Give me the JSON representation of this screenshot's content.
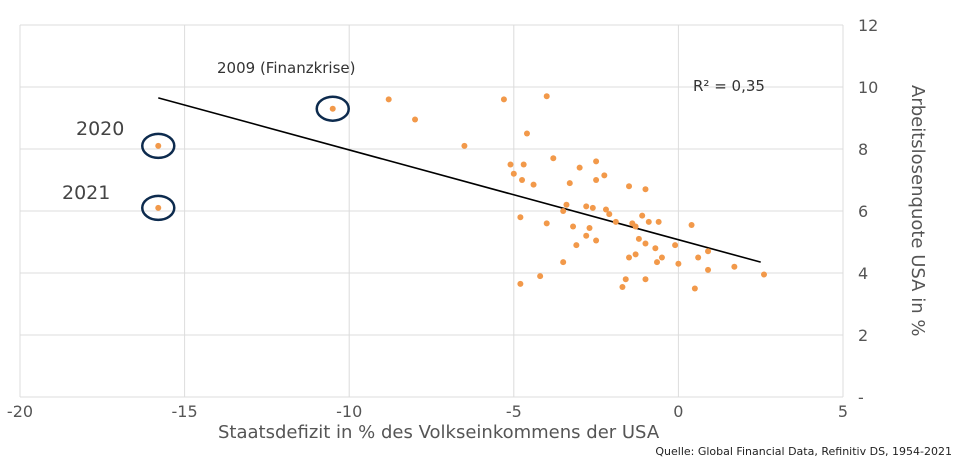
{
  "chart_data": {
    "type": "scatter",
    "title": "",
    "xlabel": "Staatsdefizit in % des Volkseinkommens der USA",
    "ylabel": "Arbeitslosenquote USA in %",
    "xlim": [
      -20,
      5
    ],
    "ylim": [
      0,
      12
    ],
    "x_ticks": [
      "-20",
      "-15",
      "-10",
      "-5",
      "0",
      "5"
    ],
    "y_ticks": [
      "-",
      "2",
      "4",
      "6",
      "8",
      "10",
      "12"
    ],
    "grid": true,
    "point_color": "#f2994a",
    "trendline_color": "#000000",
    "highlight_color": "#0d2b4e",
    "trendline": {
      "x": [
        -15.8,
        2.5
      ],
      "y": [
        9.65,
        4.35
      ]
    },
    "r_squared_label": "R² = 0,35",
    "annotations": [
      {
        "text": "2009 (Finanzkrise)",
        "x": -10.5,
        "y": 9.3
      },
      {
        "text": "2020",
        "x": -15.8,
        "y": 8.1
      },
      {
        "text": "2021",
        "x": -15.8,
        "y": 6.1
      }
    ],
    "highlighted_points": [
      {
        "x": -15.8,
        "y": 8.1
      },
      {
        "x": -15.8,
        "y": 6.1
      },
      {
        "x": -10.5,
        "y": 9.3
      }
    ],
    "points": [
      {
        "x": -15.8,
        "y": 8.1
      },
      {
        "x": -15.8,
        "y": 6.1
      },
      {
        "x": -10.5,
        "y": 9.3
      },
      {
        "x": -8.8,
        "y": 9.6
      },
      {
        "x": -8.0,
        "y": 8.95
      },
      {
        "x": -6.5,
        "y": 8.1
      },
      {
        "x": -5.3,
        "y": 9.6
      },
      {
        "x": -4.0,
        "y": 9.7
      },
      {
        "x": -4.6,
        "y": 8.5
      },
      {
        "x": -5.1,
        "y": 7.5
      },
      {
        "x": -5.0,
        "y": 7.2
      },
      {
        "x": -4.7,
        "y": 7.5
      },
      {
        "x": -4.75,
        "y": 7.0
      },
      {
        "x": -4.4,
        "y": 6.85
      },
      {
        "x": -3.8,
        "y": 7.7
      },
      {
        "x": -3.3,
        "y": 6.9
      },
      {
        "x": -2.5,
        "y": 7.6
      },
      {
        "x": -2.5,
        "y": 7.0
      },
      {
        "x": -2.25,
        "y": 7.15
      },
      {
        "x": -1.5,
        "y": 6.8
      },
      {
        "x": -1.0,
        "y": 6.7
      },
      {
        "x": -3.0,
        "y": 7.4
      },
      {
        "x": -3.5,
        "y": 6.0
      },
      {
        "x": -3.4,
        "y": 6.2
      },
      {
        "x": -2.8,
        "y": 6.15
      },
      {
        "x": -2.6,
        "y": 6.1
      },
      {
        "x": -2.2,
        "y": 6.05
      },
      {
        "x": -2.1,
        "y": 5.9
      },
      {
        "x": -4.8,
        "y": 5.8
      },
      {
        "x": -4.0,
        "y": 5.6
      },
      {
        "x": -3.2,
        "y": 5.5
      },
      {
        "x": -2.7,
        "y": 5.45
      },
      {
        "x": -2.8,
        "y": 5.2
      },
      {
        "x": -2.5,
        "y": 5.05
      },
      {
        "x": -1.9,
        "y": 5.65
      },
      {
        "x": -1.4,
        "y": 5.6
      },
      {
        "x": -1.3,
        "y": 5.5
      },
      {
        "x": -1.1,
        "y": 5.85
      },
      {
        "x": -0.9,
        "y": 5.65
      },
      {
        "x": -0.6,
        "y": 5.65
      },
      {
        "x": 0.4,
        "y": 5.55
      },
      {
        "x": -1.2,
        "y": 5.1
      },
      {
        "x": -1.0,
        "y": 4.95
      },
      {
        "x": -0.1,
        "y": 4.9
      },
      {
        "x": -0.7,
        "y": 4.8
      },
      {
        "x": -1.5,
        "y": 4.5
      },
      {
        "x": -1.3,
        "y": 4.6
      },
      {
        "x": -0.5,
        "y": 4.5
      },
      {
        "x": -0.65,
        "y": 4.35
      },
      {
        "x": -3.1,
        "y": 4.9
      },
      {
        "x": -3.5,
        "y": 4.35
      },
      {
        "x": 0.0,
        "y": 4.3
      },
      {
        "x": 0.6,
        "y": 4.5
      },
      {
        "x": 0.9,
        "y": 4.7
      },
      {
        "x": 0.9,
        "y": 4.1
      },
      {
        "x": 1.7,
        "y": 4.2
      },
      {
        "x": 2.6,
        "y": 3.95
      },
      {
        "x": -4.2,
        "y": 3.9
      },
      {
        "x": -1.6,
        "y": 3.8
      },
      {
        "x": -1.0,
        "y": 3.8
      },
      {
        "x": -4.8,
        "y": 3.65
      },
      {
        "x": -1.7,
        "y": 3.55
      },
      {
        "x": 0.5,
        "y": 3.5
      }
    ]
  },
  "source": "Quelle: Global Financial Data, Refinitiv DS, 1954-2021"
}
